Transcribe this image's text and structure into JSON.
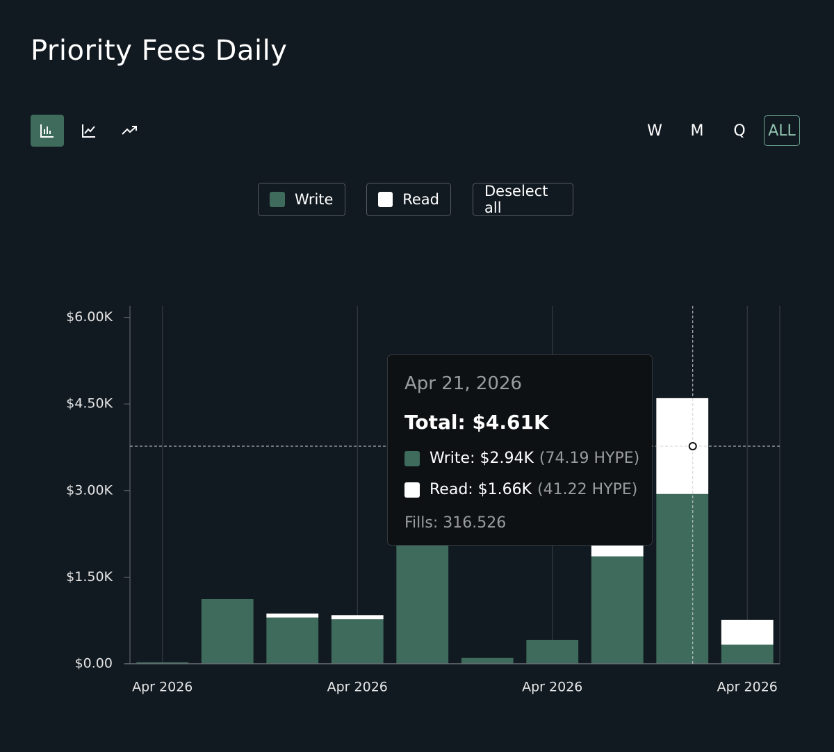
{
  "title": "Priority Fees Daily",
  "controls": {
    "ranges": [
      "W",
      "M",
      "Q",
      "ALL"
    ],
    "deselect": "Deselect all"
  },
  "chart_data": {
    "type": "bar",
    "stacked": true,
    "categories": [
      "Apr 2026",
      null,
      null,
      "Apr 2026",
      null,
      null,
      "Apr 2026",
      null,
      null,
      "Apr 2026"
    ],
    "series": [
      {
        "name": "Write",
        "color": "#3e6b5b",
        "values": [
          25,
          1120,
          800,
          770,
          2200,
          100,
          410,
          1860,
          2940,
          330
        ]
      },
      {
        "name": "Read",
        "color": "#ffffff",
        "values": [
          0,
          0,
          70,
          70,
          0,
          0,
          0,
          250,
          1660,
          430
        ]
      }
    ],
    "ylim": [
      0,
      6200
    ],
    "yticks": [
      {
        "value": 0,
        "label": "$0.00"
      },
      {
        "value": 1500,
        "label": "$1.50K"
      },
      {
        "value": 3000,
        "label": "$3.00K"
      },
      {
        "value": 4500,
        "label": "$4.50K"
      },
      {
        "value": 6000,
        "label": "$6.00K"
      }
    ],
    "grid": true,
    "tooltip": {
      "date": "Apr 21, 2026",
      "total": "Total: $4.61K",
      "write": "Write: $2.94K",
      "write_hype": "(74.19 HYPE)",
      "read": "Read: $1.66K",
      "read_hype": "(41.22 HYPE)",
      "fills": "Fills: 316.526"
    }
  }
}
